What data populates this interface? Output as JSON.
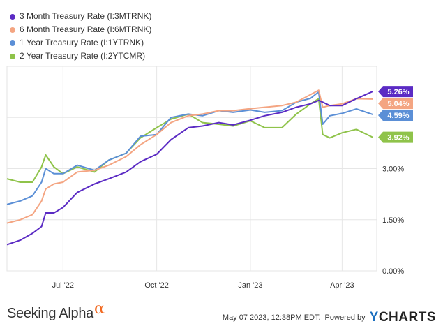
{
  "chart_data": {
    "type": "line",
    "x_axis": {
      "range": [
        "2022-05-07",
        "2023-05-05"
      ],
      "ticks": [
        {
          "date": "2022-07-01",
          "label": "Jul '22"
        },
        {
          "date": "2022-10-01",
          "label": "Oct '22"
        },
        {
          "date": "2023-01-01",
          "label": "Jan '23"
        },
        {
          "date": "2023-04-01",
          "label": "Apr '23"
        }
      ]
    },
    "y_axis": {
      "range": [
        0,
        6.0
      ],
      "ticks": [
        {
          "value": 0,
          "label": "0.00%"
        },
        {
          "value": 1.5,
          "label": "1.50%"
        },
        {
          "value": 3.0,
          "label": "3.00%"
        }
      ],
      "grid": true,
      "position": "right"
    },
    "legend_position": "top-left",
    "series": [
      {
        "name": "3 Month Treasury Rate (I:3MTRNK)",
        "color": "#5b2bc4",
        "last_label": "5.26%",
        "points": [
          [
            "2022-05-07",
            0.77
          ],
          [
            "2022-05-20",
            0.9
          ],
          [
            "2022-06-01",
            1.1
          ],
          [
            "2022-06-10",
            1.3
          ],
          [
            "2022-06-14",
            1.7
          ],
          [
            "2022-06-22",
            1.7
          ],
          [
            "2022-07-01",
            1.86
          ],
          [
            "2022-07-15",
            2.3
          ],
          [
            "2022-08-01",
            2.55
          ],
          [
            "2022-08-15",
            2.7
          ],
          [
            "2022-09-01",
            2.9
          ],
          [
            "2022-09-15",
            3.2
          ],
          [
            "2022-10-01",
            3.42
          ],
          [
            "2022-10-15",
            3.85
          ],
          [
            "2022-11-01",
            4.2
          ],
          [
            "2022-11-15",
            4.25
          ],
          [
            "2022-12-01",
            4.35
          ],
          [
            "2022-12-15",
            4.28
          ],
          [
            "2023-01-01",
            4.42
          ],
          [
            "2023-01-15",
            4.55
          ],
          [
            "2023-02-01",
            4.65
          ],
          [
            "2023-02-15",
            4.8
          ],
          [
            "2023-03-01",
            4.9
          ],
          [
            "2023-03-09",
            5.0
          ],
          [
            "2023-03-13",
            4.95
          ],
          [
            "2023-03-20",
            4.85
          ],
          [
            "2023-04-01",
            4.85
          ],
          [
            "2023-04-15",
            5.05
          ],
          [
            "2023-05-01",
            5.26
          ]
        ]
      },
      {
        "name": "6 Month Treasury Rate (I:6MTRNK)",
        "color": "#f4a582",
        "last_label": "5.04%",
        "points": [
          [
            "2022-05-07",
            1.4
          ],
          [
            "2022-05-20",
            1.5
          ],
          [
            "2022-06-01",
            1.65
          ],
          [
            "2022-06-10",
            2.05
          ],
          [
            "2022-06-14",
            2.4
          ],
          [
            "2022-06-22",
            2.55
          ],
          [
            "2022-07-01",
            2.6
          ],
          [
            "2022-07-15",
            2.9
          ],
          [
            "2022-08-01",
            2.95
          ],
          [
            "2022-08-15",
            3.1
          ],
          [
            "2022-09-01",
            3.35
          ],
          [
            "2022-09-15",
            3.7
          ],
          [
            "2022-10-01",
            4.0
          ],
          [
            "2022-10-15",
            4.35
          ],
          [
            "2022-11-01",
            4.55
          ],
          [
            "2022-11-15",
            4.6
          ],
          [
            "2022-12-01",
            4.7
          ],
          [
            "2022-12-15",
            4.7
          ],
          [
            "2023-01-01",
            4.76
          ],
          [
            "2023-01-15",
            4.8
          ],
          [
            "2023-02-01",
            4.85
          ],
          [
            "2023-02-15",
            4.95
          ],
          [
            "2023-03-01",
            5.17
          ],
          [
            "2023-03-09",
            5.3
          ],
          [
            "2023-03-13",
            4.8
          ],
          [
            "2023-03-20",
            4.85
          ],
          [
            "2023-04-01",
            4.9
          ],
          [
            "2023-04-15",
            5.05
          ],
          [
            "2023-05-01",
            5.04
          ]
        ]
      },
      {
        "name": "1 Year Treasury Rate (I:1YTRNK)",
        "color": "#5b8fd6",
        "last_label": "4.59%",
        "points": [
          [
            "2022-05-07",
            1.95
          ],
          [
            "2022-05-20",
            2.05
          ],
          [
            "2022-06-01",
            2.2
          ],
          [
            "2022-06-10",
            2.6
          ],
          [
            "2022-06-14",
            3.0
          ],
          [
            "2022-06-22",
            2.85
          ],
          [
            "2022-07-01",
            2.85
          ],
          [
            "2022-07-15",
            3.1
          ],
          [
            "2022-08-01",
            2.95
          ],
          [
            "2022-08-15",
            3.25
          ],
          [
            "2022-09-01",
            3.45
          ],
          [
            "2022-09-15",
            3.95
          ],
          [
            "2022-10-01",
            4.0
          ],
          [
            "2022-10-15",
            4.5
          ],
          [
            "2022-11-01",
            4.6
          ],
          [
            "2022-11-15",
            4.55
          ],
          [
            "2022-12-01",
            4.7
          ],
          [
            "2022-12-15",
            4.65
          ],
          [
            "2023-01-01",
            4.72
          ],
          [
            "2023-01-15",
            4.65
          ],
          [
            "2023-02-01",
            4.7
          ],
          [
            "2023-02-15",
            4.95
          ],
          [
            "2023-03-01",
            5.06
          ],
          [
            "2023-03-09",
            5.25
          ],
          [
            "2023-03-13",
            4.3
          ],
          [
            "2023-03-20",
            4.55
          ],
          [
            "2023-04-01",
            4.62
          ],
          [
            "2023-04-15",
            4.75
          ],
          [
            "2023-05-01",
            4.59
          ]
        ]
      },
      {
        "name": "2 Year Treasury Rate (I:2YTCMR)",
        "color": "#8fc34a",
        "last_label": "3.92%",
        "points": [
          [
            "2022-05-07",
            2.7
          ],
          [
            "2022-05-20",
            2.6
          ],
          [
            "2022-06-01",
            2.6
          ],
          [
            "2022-06-10",
            3.05
          ],
          [
            "2022-06-14",
            3.4
          ],
          [
            "2022-06-22",
            3.05
          ],
          [
            "2022-07-01",
            2.85
          ],
          [
            "2022-07-15",
            3.05
          ],
          [
            "2022-08-01",
            2.9
          ],
          [
            "2022-08-15",
            3.25
          ],
          [
            "2022-09-01",
            3.45
          ],
          [
            "2022-09-15",
            3.9
          ],
          [
            "2022-10-01",
            4.2
          ],
          [
            "2022-10-15",
            4.45
          ],
          [
            "2022-11-01",
            4.6
          ],
          [
            "2022-11-15",
            4.35
          ],
          [
            "2022-12-01",
            4.3
          ],
          [
            "2022-12-15",
            4.25
          ],
          [
            "2023-01-01",
            4.4
          ],
          [
            "2023-01-15",
            4.2
          ],
          [
            "2023-02-01",
            4.2
          ],
          [
            "2023-02-15",
            4.6
          ],
          [
            "2023-03-01",
            4.9
          ],
          [
            "2023-03-09",
            5.05
          ],
          [
            "2023-03-13",
            4.0
          ],
          [
            "2023-03-20",
            3.9
          ],
          [
            "2023-04-01",
            4.05
          ],
          [
            "2023-04-15",
            4.15
          ],
          [
            "2023-05-01",
            3.92
          ]
        ]
      }
    ]
  },
  "footer": {
    "brand_text": "Seeking Alpha",
    "brand_symbol": "α",
    "timestamp": "May 07 2023, 12:38PM EDT.",
    "powered_by": "Powered by",
    "ycharts_y": "Y",
    "ycharts_rest": "CHARTS"
  }
}
